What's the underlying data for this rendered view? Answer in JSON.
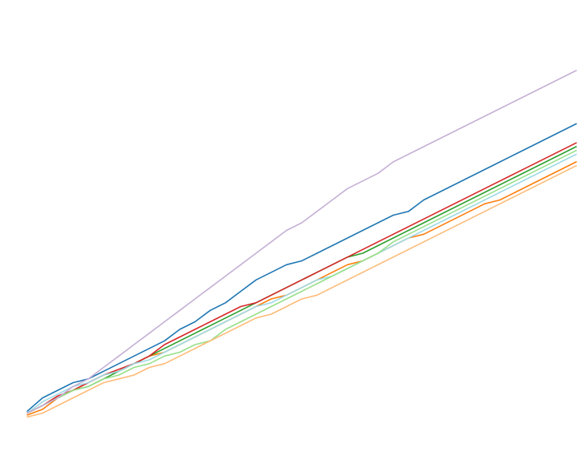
{
  "chart_data": {
    "type": "line",
    "title": "",
    "xlabel": "",
    "ylabel": "",
    "axes_visible": false,
    "grid": false,
    "legend": "none",
    "xlim": [
      0,
      36
    ],
    "ylim": [
      0,
      100
    ],
    "x": [
      0,
      1,
      2,
      3,
      4,
      5,
      6,
      7,
      8,
      9,
      10,
      11,
      12,
      13,
      14,
      15,
      16,
      17,
      18,
      19,
      20,
      21,
      22,
      23,
      24,
      25,
      26,
      27,
      28,
      29,
      30,
      31,
      32,
      33,
      34,
      35,
      36
    ],
    "series": [
      {
        "color": "#1f77b4",
        "values": [
          2.5,
          6,
          8,
          10,
          11,
          13,
          15,
          17,
          19,
          21,
          24,
          26,
          29,
          31,
          34,
          37,
          39,
          41,
          42,
          44,
          46,
          48,
          50,
          52,
          54,
          55,
          58,
          60,
          62,
          64,
          66,
          68,
          70,
          72,
          74,
          76,
          78
        ]
      },
      {
        "color": "#ff7f0e",
        "values": [
          1.5,
          3,
          6,
          8,
          10,
          12,
          13,
          15,
          17,
          18,
          20,
          22,
          24,
          26,
          28,
          30,
          32,
          33,
          35,
          37,
          39,
          41,
          42,
          44,
          46,
          48,
          49,
          51,
          53,
          55,
          57,
          58,
          60,
          62,
          64,
          66,
          68
        ]
      },
      {
        "color": "#2ca02c",
        "values": [
          2,
          4,
          6,
          8,
          9,
          11,
          13,
          15,
          17,
          19,
          21,
          23,
          25,
          27,
          29,
          31,
          33,
          35,
          37,
          39,
          41,
          43,
          44,
          46,
          48,
          50,
          52,
          54,
          56,
          58,
          60,
          62,
          64,
          66,
          68,
          70,
          72
        ]
      },
      {
        "color": "#d62728",
        "values": [
          2,
          4,
          6.5,
          8,
          10,
          12,
          13.5,
          15,
          17,
          20,
          22,
          24,
          26,
          28,
          30,
          31,
          33,
          35,
          37,
          39,
          41,
          43,
          45,
          47,
          49,
          51,
          53,
          55,
          57,
          59,
          61,
          63,
          65,
          67,
          69,
          71,
          73
        ]
      },
      {
        "color": "#9edae5",
        "values": [
          2,
          5,
          7,
          9,
          10,
          12,
          13,
          15,
          16,
          18,
          20,
          22,
          24,
          26,
          28,
          30,
          31,
          33,
          35,
          37,
          38,
          40,
          42,
          44,
          46,
          48,
          50,
          52,
          54,
          56,
          58,
          60,
          62,
          64,
          66,
          68,
          70
        ]
      },
      {
        "color": "#98df8a",
        "values": [
          2,
          4,
          6,
          8,
          9,
          11,
          12,
          14,
          15,
          17,
          18,
          20,
          21,
          24,
          26,
          28,
          30,
          32,
          34,
          36,
          38,
          40,
          42,
          44,
          47,
          49,
          51,
          53,
          55,
          57,
          59,
          61,
          63,
          65,
          67,
          69,
          71
        ]
      },
      {
        "color": "#ffbb78",
        "values": [
          1,
          2,
          4,
          6,
          8,
          10,
          11,
          12,
          14,
          15,
          17,
          19,
          21,
          23,
          25,
          27,
          28,
          30,
          32,
          33,
          35,
          37,
          39,
          41,
          43,
          45,
          47,
          49,
          51,
          53,
          55,
          57,
          59,
          61,
          63,
          65,
          67
        ]
      },
      {
        "color": "#c5b0d5",
        "values": [
          2,
          4,
          6,
          9,
          11,
          14,
          17,
          20,
          23,
          26,
          29,
          32,
          35,
          38,
          41,
          44,
          47,
          50,
          52,
          55,
          58,
          61,
          63,
          65,
          68,
          70,
          72,
          74,
          76,
          78,
          80,
          82,
          84,
          86,
          88,
          90,
          92
        ]
      }
    ]
  }
}
